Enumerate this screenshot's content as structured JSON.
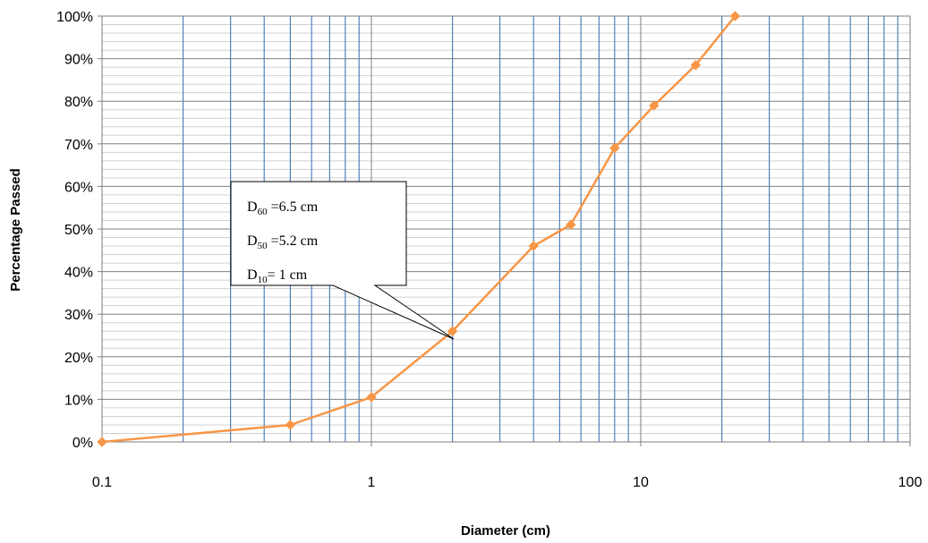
{
  "chart_data": {
    "type": "line",
    "title": "",
    "xlabel": "Diameter (cm)",
    "ylabel": "Percentage Passed",
    "x_scale": "log",
    "xlim": [
      0.1,
      100
    ],
    "ylim": [
      0,
      100
    ],
    "x_ticks": [
      "0.1",
      "1",
      "10",
      "100"
    ],
    "y_ticks": [
      "0%",
      "10%",
      "20%",
      "30%",
      "40%",
      "50%",
      "60%",
      "70%",
      "80%",
      "90%",
      "100%"
    ],
    "grid": true,
    "legend": "none",
    "line_color": "#f79646",
    "grid_color": "#4f81bd",
    "series": [
      {
        "x": [
          0.1,
          0.5,
          1,
          2,
          4,
          5.5,
          8,
          11.2,
          16,
          22.4
        ],
        "y": [
          0,
          4,
          10.5,
          26,
          46,
          51,
          69,
          79,
          88.5,
          100
        ]
      }
    ],
    "annotations": [
      {
        "base": "D",
        "sub": "60",
        "text": " =6.5 cm"
      },
      {
        "base": "D",
        "sub": "50",
        "text": " =5.2 cm"
      },
      {
        "base": "D",
        "sub": "10",
        "text": "= 1 cm"
      }
    ]
  }
}
